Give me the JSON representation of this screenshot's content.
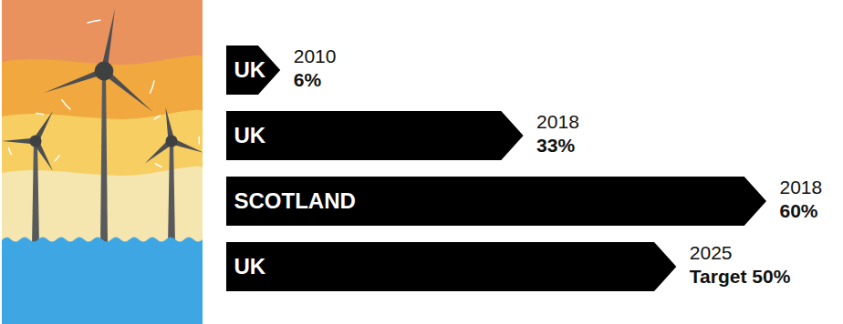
{
  "chart_data": {
    "type": "bar",
    "orientation": "horizontal",
    "categories": [
      "UK",
      "UK",
      "SCOTLAND",
      "UK"
    ],
    "years": [
      "2010",
      "2018",
      "2018",
      "2025"
    ],
    "values": [
      6,
      33,
      60,
      50
    ],
    "value_labels": [
      "6%",
      "33%",
      "60%",
      "Target 50%"
    ],
    "color": "#000000",
    "xlim": [
      0,
      60
    ],
    "data_labels": true,
    "tick_labels": false,
    "grid": false
  }
}
